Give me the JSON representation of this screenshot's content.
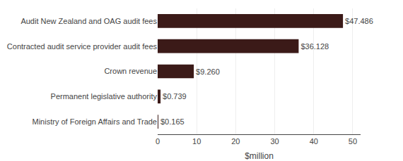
{
  "chart_data": {
    "type": "bar",
    "orientation": "horizontal",
    "categories": [
      "Ministry of Foreign Affairs and Trade",
      "Permanent legislative authority",
      "Crown revenue",
      "Contracted audit service provider audit fees",
      "Audit New Zealand and OAG audit fees"
    ],
    "values": [
      0.165,
      0.739,
      9.26,
      36.128,
      47.486
    ],
    "value_labels": [
      "$0.165",
      "$0.739",
      "$9.260",
      "$36.128",
      "$47.486"
    ],
    "data_labels": true,
    "color": "#3b1a18",
    "xlabel": "$million",
    "xlim": [
      0,
      52
    ],
    "xticks": [
      0,
      10,
      20,
      30,
      40,
      50
    ],
    "grid": true
  }
}
